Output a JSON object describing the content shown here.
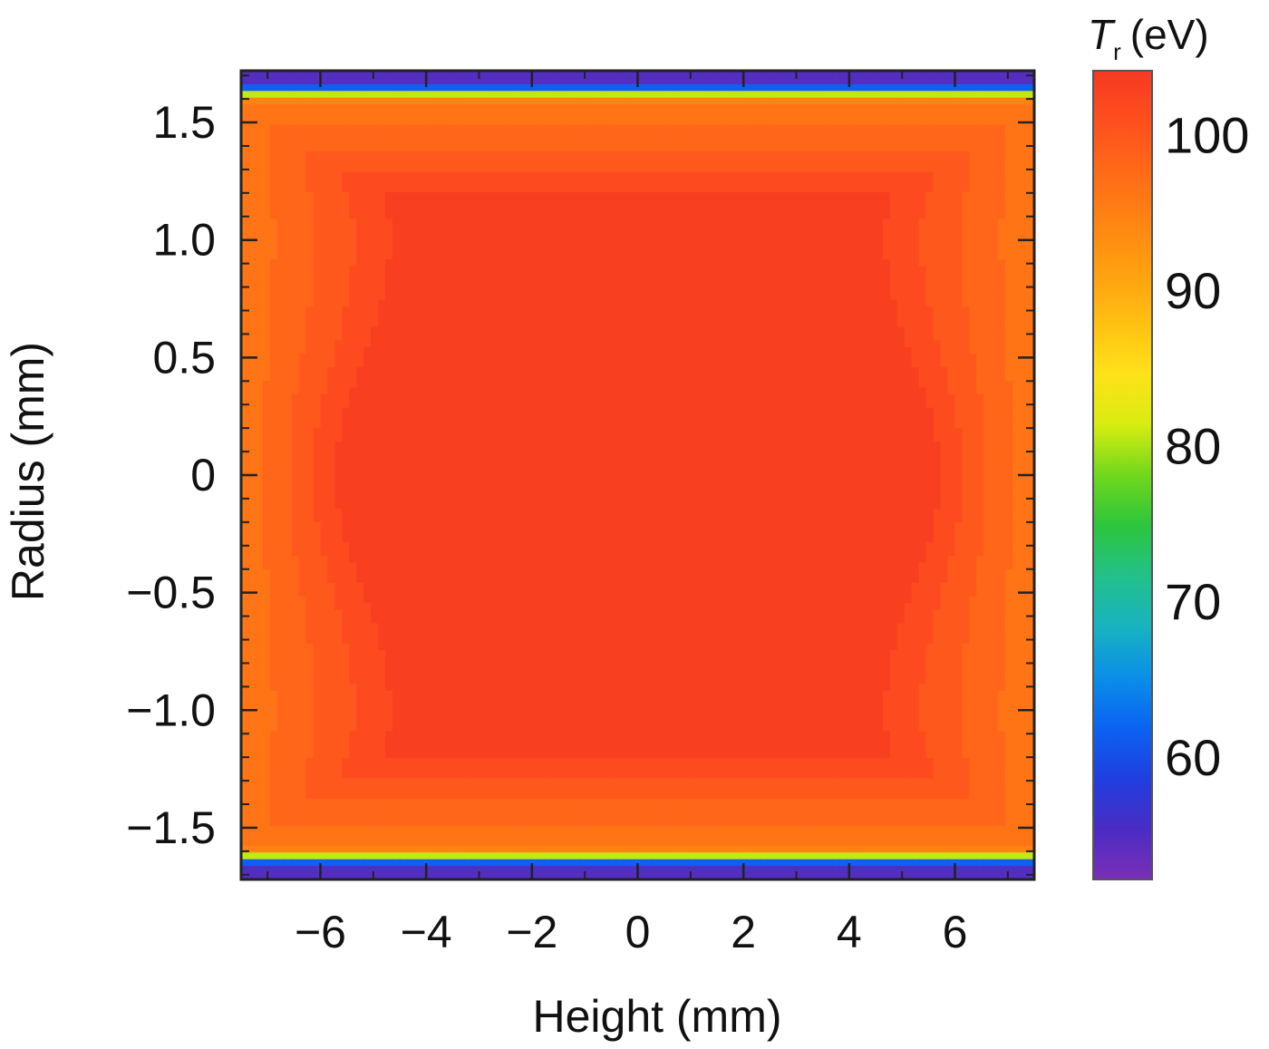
{
  "chart_data": {
    "type": "heatmap",
    "title": "",
    "xlabel": "Height (mm)",
    "ylabel": "Radius (mm)",
    "xlim": [
      -7.5,
      7.5
    ],
    "ylim": [
      -1.72,
      1.72
    ],
    "x_ticks": [
      -6,
      -4,
      -2,
      0,
      2,
      4,
      6
    ],
    "x_tick_labels": [
      "−6",
      "−4",
      "−2",
      "0",
      "2",
      "4",
      "6"
    ],
    "y_ticks": [
      1.5,
      1.0,
      0.5,
      0,
      -0.5,
      -1.0,
      -1.5
    ],
    "y_tick_labels": [
      "1.5",
      "1.0",
      "0.5",
      "0",
      "−0.5",
      "−1.0",
      "−1.5"
    ],
    "colorbar": {
      "label_symbol": "T",
      "label_subscript": "r",
      "label_unit": "(eV)",
      "range": [
        52,
        104
      ],
      "ticks": [
        100,
        90,
        80,
        70,
        60
      ],
      "tick_labels": [
        "100",
        "90",
        "80",
        "70",
        "60"
      ],
      "colormap": [
        "#7b2fb6",
        "#4a2cc4",
        "#1f3fe0",
        "#0b63f2",
        "#0a8fe8",
        "#18b3c0",
        "#22c08a",
        "#2cc53c",
        "#70d81c",
        "#d8ec10",
        "#ffe21a",
        "#ffc012",
        "#ffa010",
        "#ff8512",
        "#ff6a18",
        "#ff4f1e",
        "#f53a22"
      ]
    },
    "temperature_field": {
      "core_value_eV": 103,
      "edge_value_eV": 96,
      "boundary_value_eV": 55,
      "boundary_radius_mm": 1.6,
      "pattern": "uniform hot core (~103 eV) across |Height| < 5 mm and |Radius| < 1.2 mm; cooler orange bands (95-100 eV) near |Height| > 5 mm and 1.2 < |Radius| < 1.6 mm; sharp drop to ~55 eV for |Radius| > 1.6 mm"
    }
  }
}
